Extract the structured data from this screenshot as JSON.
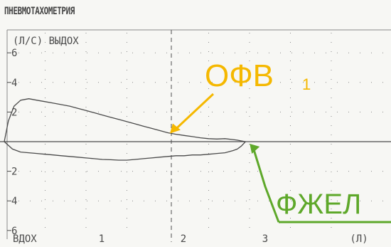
{
  "window": {
    "title": "ПНЕВМОТАХОМЕТРИЯ"
  },
  "colors": {
    "ink": "#4a4a4a",
    "grid": "#8a8a8a",
    "fev1": "#f5b800",
    "fvc": "#5ea82a",
    "bg": "#f7f7f4"
  },
  "chart_data": {
    "type": "line",
    "title": "",
    "ylabel": "(Л/С) ВЫДОХ",
    "ylabel_bottom": "ВДОХ",
    "xlabel": "(Л)",
    "xlim": [
      0,
      3.3
    ],
    "ylim": [
      -6,
      6
    ],
    "x_ticks": [
      {
        "value": 1,
        "label": "1"
      },
      {
        "value": 2,
        "label": "2"
      },
      {
        "value": 3,
        "label": "3"
      }
    ],
    "y_ticks": [
      {
        "value": 6,
        "label": "6"
      },
      {
        "value": 4,
        "label": "4"
      },
      {
        "value": 2,
        "label": "2"
      },
      {
        "value": -2,
        "label": "2"
      },
      {
        "value": -4,
        "label": "4"
      },
      {
        "value": -6,
        "label": "6"
      }
    ],
    "grid": true,
    "series": [
      {
        "role": "expiration",
        "x": [
          0.0,
          0.05,
          0.12,
          0.2,
          0.3,
          0.4,
          0.5,
          0.6,
          0.7,
          0.8,
          0.9,
          1.0,
          1.1,
          1.2,
          1.3,
          1.4,
          1.5,
          1.6,
          1.7,
          1.8,
          1.9,
          2.0,
          2.1,
          2.2,
          2.3,
          2.4,
          2.5,
          2.6,
          2.7,
          2.8,
          2.85,
          2.9,
          2.95
        ],
        "y": [
          0.0,
          1.4,
          2.4,
          2.8,
          2.9,
          2.8,
          2.7,
          2.6,
          2.5,
          2.4,
          2.25,
          2.1,
          1.95,
          1.8,
          1.65,
          1.5,
          1.35,
          1.2,
          1.05,
          0.9,
          0.75,
          0.6,
          0.5,
          0.42,
          0.34,
          0.26,
          0.2,
          0.18,
          0.2,
          0.14,
          0.1,
          0.05,
          0.0
        ]
      },
      {
        "role": "inspiration",
        "x": [
          0.0,
          0.1,
          0.2,
          0.3,
          0.4,
          0.5,
          0.6,
          0.7,
          0.8,
          0.9,
          1.0,
          1.1,
          1.2,
          1.3,
          1.4,
          1.5,
          1.6,
          1.7,
          1.8,
          1.9,
          2.0,
          2.1,
          2.2,
          2.3,
          2.4,
          2.5,
          2.6,
          2.7,
          2.8,
          2.85,
          2.9,
          2.95
        ],
        "y": [
          0.0,
          -0.5,
          -0.7,
          -0.75,
          -0.8,
          -0.85,
          -0.9,
          -0.95,
          -1.0,
          -1.05,
          -1.1,
          -1.15,
          -1.2,
          -1.22,
          -1.25,
          -1.25,
          -1.2,
          -1.15,
          -1.1,
          -1.05,
          -1.0,
          -0.95,
          -0.95,
          -0.9,
          -0.9,
          -0.85,
          -0.8,
          -0.75,
          -0.6,
          -0.5,
          -0.3,
          0.0
        ]
      }
    ],
    "annotations": [
      {
        "label": "ОФВ",
        "subscript": "1",
        "x": 2.0,
        "y": 0.6,
        "color": "#f5b800"
      },
      {
        "label": "ФЖЕЛ",
        "x": 2.95,
        "y": 0.0,
        "color": "#5ea82a"
      }
    ]
  }
}
